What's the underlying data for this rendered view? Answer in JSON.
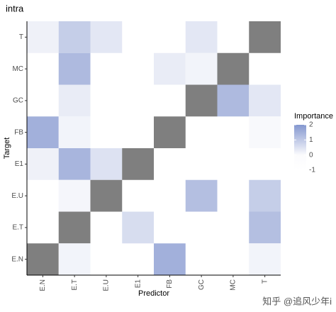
{
  "chart_data": {
    "type": "heatmap",
    "title": "intra",
    "x_label": "Predictor",
    "y_label": "Target",
    "x_categories": [
      "E.N",
      "E.T",
      "E.U",
      "E1",
      "FB",
      "GC",
      "MC",
      "T"
    ],
    "y_categories": [
      "T",
      "MC",
      "GC",
      "FB",
      "E1",
      "E.U",
      "E.T",
      "E.N"
    ],
    "values": [
      [
        0.2,
        0.9,
        0.4,
        null,
        null,
        0.4,
        null,
        null
      ],
      [
        null,
        1.3,
        null,
        null,
        0.3,
        0.15,
        null,
        null
      ],
      [
        null,
        0.3,
        null,
        null,
        null,
        null,
        1.3,
        0.4
      ],
      [
        1.5,
        0.15,
        null,
        null,
        null,
        null,
        null,
        0.05
      ],
      [
        0.2,
        1.4,
        0.5,
        null,
        null,
        null,
        null,
        null
      ],
      [
        null,
        0.1,
        null,
        null,
        null,
        1.2,
        null,
        0.9
      ],
      [
        null,
        null,
        null,
        0.6,
        null,
        null,
        null,
        1.2
      ],
      [
        null,
        0.15,
        null,
        null,
        1.5,
        null,
        null,
        0.15
      ]
    ],
    "diagonal_color": "#7f7f7f",
    "color_stops": [
      {
        "value": -1,
        "color": "#ffffff"
      },
      {
        "value": 0,
        "color": "#fbfbfd"
      },
      {
        "value": 2,
        "color": "#8497cf"
      }
    ],
    "legend_title": "Importance",
    "legend_lim": [
      -1,
      2
    ],
    "legend_ticks": [
      2,
      1,
      0,
      -1
    ],
    "watermark": "知乎 @追风少年i"
  }
}
